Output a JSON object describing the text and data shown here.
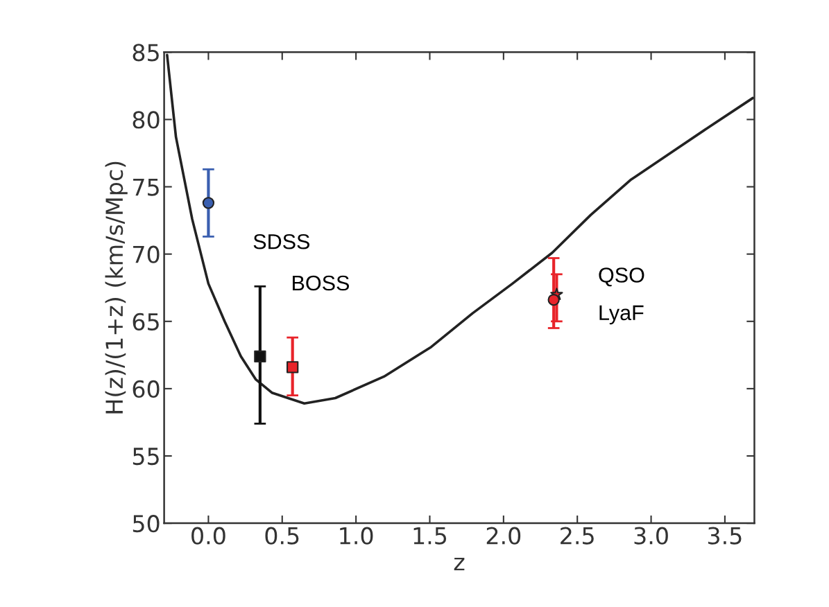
{
  "chart_data": {
    "type": "scatter",
    "xlabel": "z",
    "ylabel": "H(z)/(1+z) (km/s/Mpc)",
    "xlim": [
      -0.3,
      3.7
    ],
    "ylim": [
      50,
      85
    ],
    "xticks": [
      {
        "value": 0,
        "label": "0.0"
      },
      0.5,
      {
        "value": 1,
        "label": "1.0"
      },
      1.5,
      {
        "value": 2,
        "label": "2.0"
      },
      2.5,
      {
        "value": 3,
        "label": "3.0"
      },
      3.5
    ],
    "yticks": [
      50,
      55,
      60,
      65,
      70,
      75,
      80,
      85
    ],
    "grid": false,
    "legend": false,
    "series": [
      {
        "type": "line",
        "color": "#222222",
        "marker": "none",
        "line_style": "solid",
        "x": [
          -0.28,
          -0.22,
          -0.11,
          0.0,
          0.11,
          0.22,
          0.32,
          0.43,
          0.65,
          0.86,
          1.19,
          1.51,
          1.79,
          2.06,
          2.33,
          2.59,
          2.86,
          3.13,
          3.4,
          3.69
        ],
        "values": [
          84.8,
          78.7,
          72.6,
          67.8,
          65.0,
          62.4,
          60.7,
          59.7,
          58.9,
          59.3,
          60.9,
          63.1,
          65.6,
          67.8,
          70.1,
          72.9,
          75.5,
          77.5,
          79.5,
          81.6
        ]
      },
      {
        "color": "#3a5fb0",
        "marker": "circle",
        "x": [
          0.0
        ],
        "values": [
          73.8
        ],
        "errors": [
          [
            71.3,
            76.3
          ]
        ]
      },
      {
        "color": "#111111",
        "marker": "square",
        "x": [
          0.35
        ],
        "values": [
          62.4
        ],
        "errors": [
          [
            57.4,
            67.6
          ]
        ]
      },
      {
        "color": "#e8242a",
        "marker": "square",
        "x": [
          0.57
        ],
        "values": [
          61.6
        ],
        "errors": [
          [
            59.5,
            63.8
          ]
        ]
      },
      {
        "color": "#e8242a",
        "marker": "star",
        "x": [
          2.36
        ],
        "values": [
          67.0
        ],
        "errors": [
          [
            65.0,
            68.5
          ]
        ]
      },
      {
        "color": "#e8242a",
        "marker": "circle",
        "x": [
          2.34
        ],
        "values": [
          66.6
        ],
        "errors": [
          [
            64.5,
            69.7
          ]
        ]
      }
    ],
    "annotations": [
      "SDSS",
      "BOSS",
      "QSO",
      "LyaF"
    ]
  }
}
